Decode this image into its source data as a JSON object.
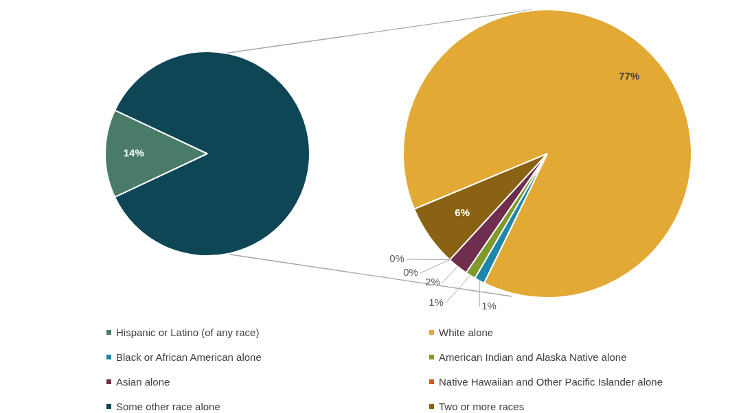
{
  "chart_data": [
    {
      "type": "pie",
      "categories": [
        "Hispanic or Latino (of any race)",
        null
      ],
      "values": [
        14,
        86
      ],
      "colors": [
        "#4a7b69",
        "#0e4655"
      ],
      "value_labels": [
        "14%",
        null
      ],
      "legend": "bottom"
    },
    {
      "type": "pie",
      "categories": [
        "White alone",
        "Black or African American alone",
        "American Indian and Alaska Native alone",
        "Asian alone",
        "Native Hawaiian and Other Pacific Islander alone",
        "Some other race alone",
        "Two or more races"
      ],
      "values": [
        77,
        1,
        1,
        2,
        0,
        0,
        6
      ],
      "colors": [
        "#e2a934",
        "#1e86a8",
        "#7d9a2a",
        "#6f2e4e",
        "#d5581e",
        "#0e4655",
        "#8a6214"
      ],
      "value_labels": [
        "77%",
        "1%",
        "1%",
        "2%",
        "0%",
        "0%",
        "6%"
      ],
      "legend": "bottom"
    }
  ]
}
